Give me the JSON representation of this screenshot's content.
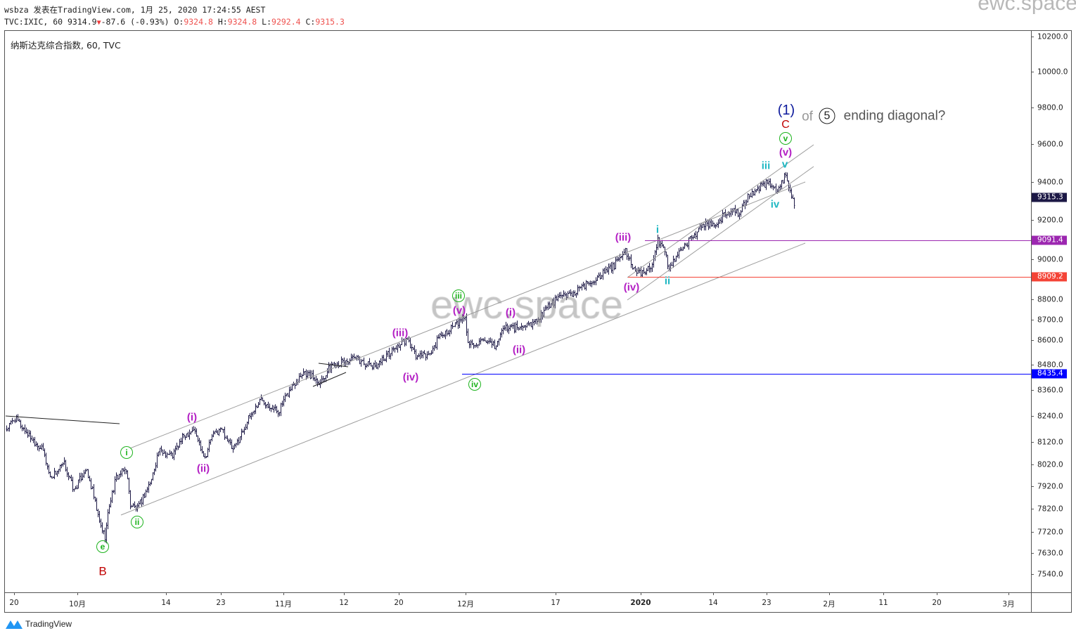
{
  "header": {
    "line1": "wsbza 发表在TradingView.com, 1月 25, 2020 17:24:55 AEST",
    "symbol_line": "TVC:IXIC, 60 9314.9",
    "change": "-87.6 (-0.93%)",
    "o_label": "O:",
    "o": "9324.8",
    "h_label": "H:",
    "h": "9324.8",
    "l_label": "L:",
    "l": "9292.4",
    "c_label": "C:",
    "c": "9315.3"
  },
  "legend": "纳斯达克综合指数, 60, TVC",
  "watermark": "ewc.space",
  "brand": "TradingView",
  "annotation": {
    "one": "(1)",
    "c": "C",
    "of": "of",
    "five": "5",
    "text": "ending diagonal?"
  },
  "wave_labels": [
    {
      "text": "e"
    },
    {
      "text": "B"
    },
    {
      "text": "i"
    },
    {
      "text": "ii"
    },
    {
      "text": "iii"
    },
    {
      "text": "iv"
    },
    {
      "text": "v"
    },
    {
      "text": "(i)"
    },
    {
      "text": "(ii)"
    },
    {
      "text": "(iii)"
    },
    {
      "text": "(iv)"
    },
    {
      "text": "(v)"
    },
    {
      "text": "(i)"
    },
    {
      "text": "(ii)"
    },
    {
      "text": "(iii)"
    },
    {
      "text": "(iv)"
    },
    {
      "text": "(v)"
    },
    {
      "text": "i"
    },
    {
      "text": "ii"
    },
    {
      "text": "iii"
    },
    {
      "text": "iv"
    },
    {
      "text": "v"
    }
  ],
  "price_tags": [
    {
      "value": 9315.3,
      "label": "9315.3",
      "color": "#1c1845"
    },
    {
      "value": 9091.4,
      "label": "9091.4",
      "color": "#9c27b0"
    },
    {
      "value": 8909.2,
      "label": "8909.2",
      "color": "#f44336"
    },
    {
      "value": 8435.4,
      "label": "8435.4",
      "color": "#0000ff"
    }
  ],
  "time_ticks": [
    "20",
    "10月",
    "14",
    "23",
    "11月",
    "12",
    "20",
    "12月",
    "17",
    "2020",
    "14",
    "23",
    "2月",
    "11",
    "20",
    "3月"
  ],
  "chart_data": {
    "type": "ohlc",
    "symbol": "TVC:IXIC",
    "interval": "60",
    "scale": "log",
    "ylim": [
      7480,
      10300
    ],
    "y_ticks": [
      10200,
      10000,
      9800,
      9600,
      9400,
      9200,
      9000,
      8800,
      8700,
      8600,
      8480,
      8360,
      8240,
      8120,
      8020,
      7920,
      7820,
      7720,
      7630,
      7540
    ],
    "y_tick_labels": [
      "10200.0",
      "10000.0",
      "9800.0",
      "9600.0",
      "9400.0",
      "9200.0",
      "9000.0",
      "8800.0",
      "8700.0",
      "8600.0",
      "8480.0",
      "8360.0",
      "8240.0",
      "8120.0",
      "8020.0",
      "7920.0",
      "7820.0",
      "7720.0",
      "7630.0",
      "7540.0"
    ],
    "bar_count": 561,
    "close_path_by_bar": [
      [
        0,
        8180
      ],
      [
        6,
        8230
      ],
      [
        16,
        8150
      ],
      [
        26,
        8080
      ],
      [
        31,
        7960
      ],
      [
        41,
        8020
      ],
      [
        48,
        7900
      ],
      [
        56,
        8000
      ],
      [
        61,
        7900
      ],
      [
        66,
        7760
      ],
      [
        70,
        7700
      ],
      [
        73,
        7840
      ],
      [
        78,
        7960
      ],
      [
        85,
        8000
      ],
      [
        88,
        7840
      ],
      [
        93,
        7820
      ],
      [
        103,
        7950
      ],
      [
        108,
        8080
      ],
      [
        118,
        8060
      ],
      [
        126,
        8150
      ],
      [
        133,
        8180
      ],
      [
        141,
        8050
      ],
      [
        146,
        8150
      ],
      [
        153,
        8180
      ],
      [
        161,
        8080
      ],
      [
        173,
        8240
      ],
      [
        181,
        8320
      ],
      [
        193,
        8260
      ],
      [
        203,
        8380
      ],
      [
        211,
        8450
      ],
      [
        223,
        8400
      ],
      [
        231,
        8480
      ],
      [
        248,
        8510
      ],
      [
        261,
        8470
      ],
      [
        276,
        8560
      ],
      [
        285,
        8600
      ],
      [
        291,
        8520
      ],
      [
        301,
        8530
      ],
      [
        308,
        8620
      ],
      [
        321,
        8680
      ],
      [
        326,
        8720
      ],
      [
        328,
        8580
      ],
      [
        336,
        8590
      ],
      [
        348,
        8570
      ],
      [
        353,
        8660
      ],
      [
        366,
        8660
      ],
      [
        376,
        8690
      ],
      [
        383,
        8750
      ],
      [
        391,
        8800
      ],
      [
        406,
        8840
      ],
      [
        418,
        8900
      ],
      [
        431,
        8960
      ],
      [
        440,
        9040
      ],
      [
        448,
        8920
      ],
      [
        458,
        8960
      ],
      [
        463,
        9090
      ],
      [
        468,
        9040
      ],
      [
        471,
        8950
      ],
      [
        476,
        9020
      ],
      [
        486,
        9100
      ],
      [
        496,
        9180
      ],
      [
        503,
        9180
      ],
      [
        516,
        9260
      ],
      [
        521,
        9230
      ],
      [
        528,
        9330
      ],
      [
        541,
        9400
      ],
      [
        546,
        9370
      ],
      [
        548,
        9340
      ],
      [
        554,
        9440
      ],
      [
        557,
        9340
      ],
      [
        560,
        9290
      ]
    ],
    "horizontal_levels": [
      9091.4,
      8909.2,
      8435.4
    ],
    "last_price": 9315.3
  }
}
